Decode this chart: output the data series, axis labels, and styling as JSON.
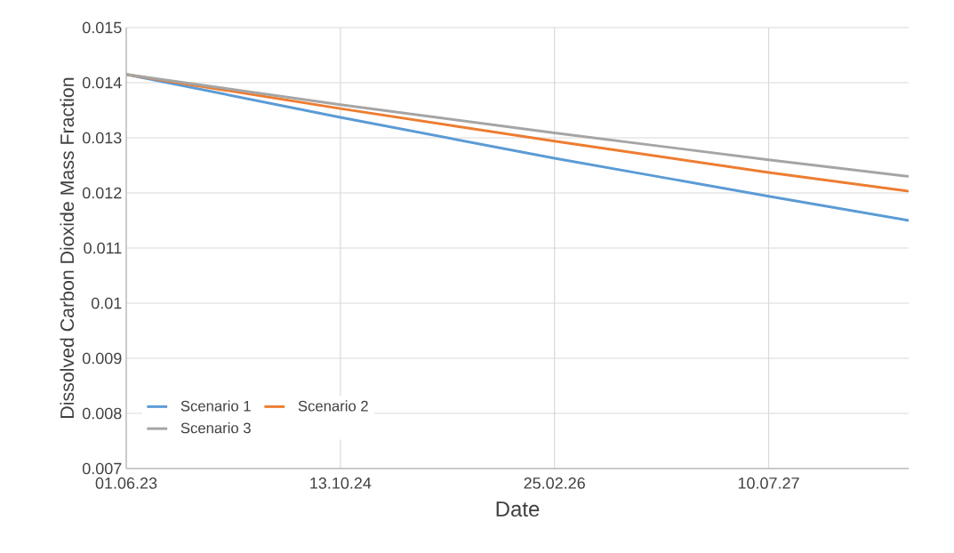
{
  "chart_data": {
    "type": "line",
    "xlabel": "Date",
    "ylabel": "Dissolved Carbon Dioxide Mass Fraction",
    "x": [
      "2023-06-01",
      "2024-10-13",
      "2026-02-25",
      "2027-07-10",
      "2028-06-01"
    ],
    "series": [
      {
        "name": "Scenario 1",
        "color": "#5b9bd5",
        "values": [
          0.01415,
          0.01337,
          0.01263,
          0.01194,
          0.0115
        ]
      },
      {
        "name": "Scenario 2",
        "color": "#ed7d31",
        "values": [
          0.01415,
          0.01353,
          0.01294,
          0.01237,
          0.01203
        ]
      },
      {
        "name": "Scenario 3",
        "color": "#a5a5a5",
        "values": [
          0.01415,
          0.0136,
          0.01309,
          0.0126,
          0.0123
        ]
      }
    ],
    "xlim": [
      "2023-06-01",
      "2028-06-01"
    ],
    "xticks": [
      {
        "value": "2023-06-01",
        "label": "01.06.23"
      },
      {
        "value": "2024-10-13",
        "label": "13.10.24"
      },
      {
        "value": "2026-02-25",
        "label": "25.02.26"
      },
      {
        "value": "2027-07-10",
        "label": "10.07.27"
      }
    ],
    "ylim": [
      0.007,
      0.015
    ],
    "yticks": [
      0.007,
      0.008,
      0.009,
      0.01,
      0.011,
      0.012,
      0.013,
      0.014,
      0.015
    ],
    "grid": true,
    "legend": "bottom left",
    "marker": "none",
    "line_style": "solid"
  }
}
